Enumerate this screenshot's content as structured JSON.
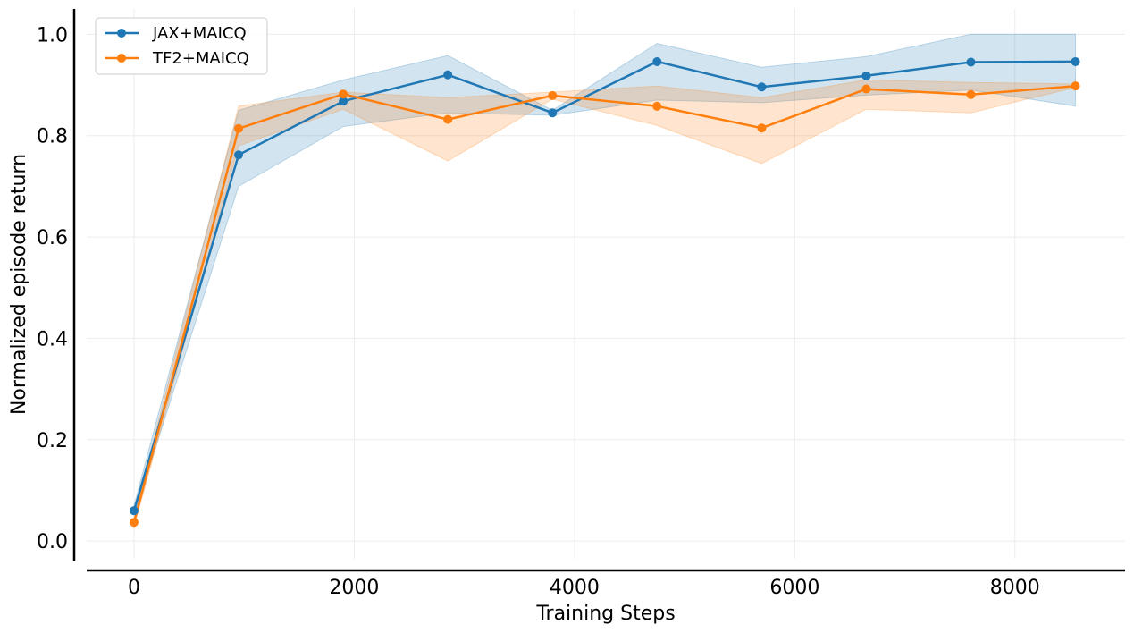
{
  "chart_data": {
    "type": "line",
    "title": "",
    "xlabel": "Training Steps",
    "ylabel": "Normalized episode return",
    "xlim": [
      -430,
      9000
    ],
    "ylim": [
      -0.035,
      1.05
    ],
    "xticks": [
      0,
      2000,
      4000,
      6000,
      8000
    ],
    "xtick_labels": [
      "0",
      "2000",
      "4000",
      "6000",
      "8000"
    ],
    "yticks": [
      0.0,
      0.2,
      0.4,
      0.6,
      0.8,
      1.0
    ],
    "ytick_labels": [
      "0.0",
      "0.2",
      "0.4",
      "0.6",
      "0.8",
      "1.0"
    ],
    "grid": true,
    "legend_position": "top-left",
    "x": [
      0,
      950,
      1900,
      2850,
      3800,
      4750,
      5700,
      6650,
      7600,
      8550
    ],
    "series": [
      {
        "name": "JAX+MAICQ",
        "color": "#1f77b4",
        "values": [
          0.06,
          0.762,
          0.868,
          0.92,
          0.845,
          0.946,
          0.896,
          0.918,
          0.945,
          0.946
        ],
        "lower": [
          0.05,
          0.7,
          0.818,
          0.845,
          0.84,
          0.87,
          0.865,
          0.88,
          0.89,
          0.858
        ],
        "upper": [
          0.07,
          0.85,
          0.91,
          0.958,
          0.85,
          0.982,
          0.935,
          0.956,
          1.0,
          1.0
        ]
      },
      {
        "name": "TF2+MAICQ",
        "color": "#ff7f0e",
        "values": [
          0.037,
          0.814,
          0.882,
          0.832,
          0.879,
          0.858,
          0.815,
          0.892,
          0.881,
          0.898
        ],
        "lower": [
          0.027,
          0.78,
          0.852,
          0.75,
          0.872,
          0.82,
          0.745,
          0.852,
          0.845,
          0.895
        ],
        "upper": [
          0.047,
          0.858,
          0.886,
          0.875,
          0.886,
          0.898,
          0.875,
          0.91,
          0.905,
          0.902
        ]
      }
    ]
  }
}
